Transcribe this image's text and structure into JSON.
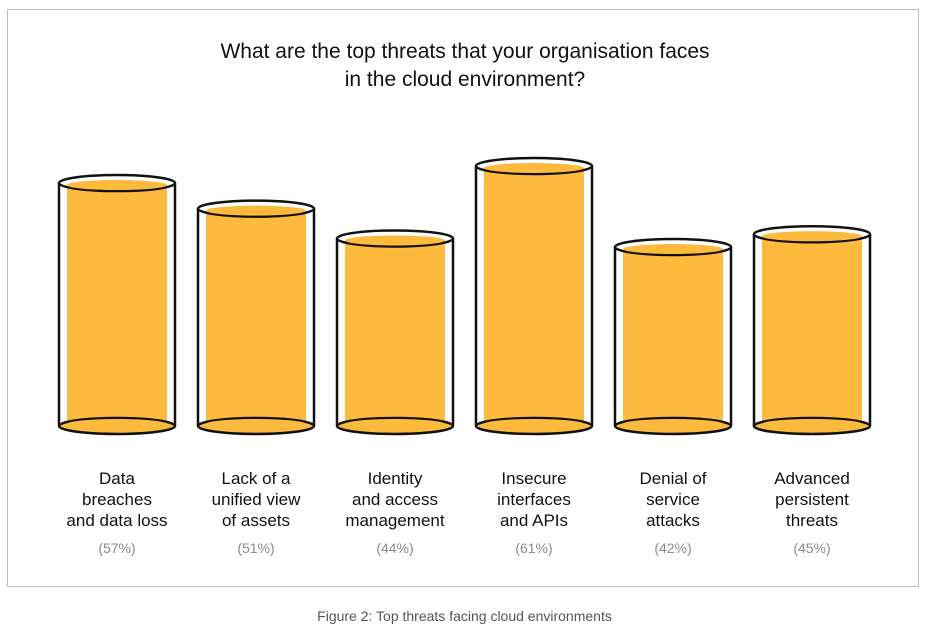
{
  "chart_data": {
    "type": "bar",
    "title": [
      "What are the top threats that your organisation faces",
      "in the cloud environment?"
    ],
    "categories": [
      [
        "Data",
        "breaches",
        "and data loss"
      ],
      [
        "Lack of a",
        "unified view",
        "of assets"
      ],
      [
        "Identity",
        "and access",
        "management"
      ],
      [
        "Insecure",
        "interfaces",
        "and APIs"
      ],
      [
        "Denial of",
        "service",
        "attacks"
      ],
      [
        "Advanced",
        "persistent",
        "threats"
      ]
    ],
    "values": [
      57,
      51,
      44,
      61,
      42,
      45
    ],
    "value_labels": [
      "(57%)",
      "(51%)",
      "(44%)",
      "(61%)",
      "(42%)",
      "(45%)"
    ],
    "bar_style": "cylinder",
    "grid": false,
    "legend": "none"
  },
  "colors": {
    "fill": "#FDBA3C",
    "outline": "#111111",
    "label": "#111111",
    "value_label": "#8a8a8a",
    "frame": "#bdbdbd"
  },
  "caption": "Figure 2: Top threats facing cloud environments"
}
